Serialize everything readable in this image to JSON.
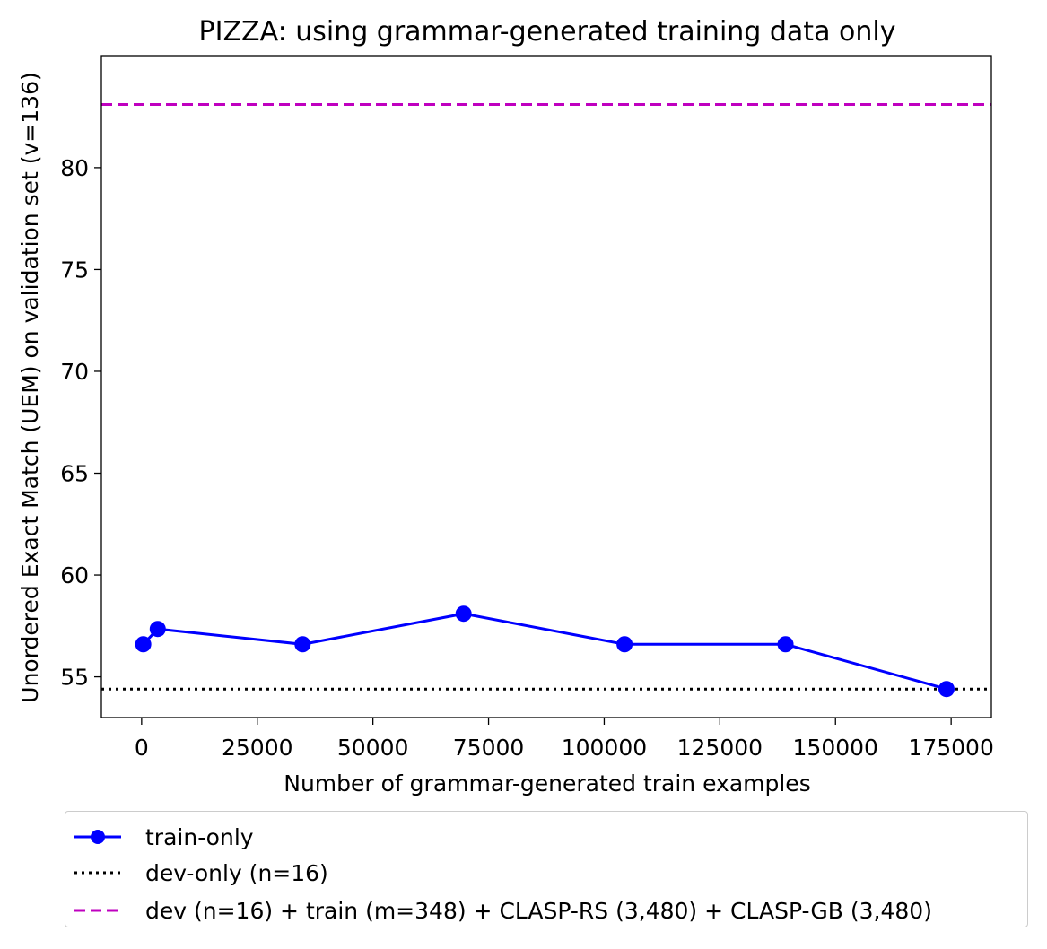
{
  "chart_data": {
    "type": "line",
    "title": "PIZZA: using grammar-generated training data only",
    "xlabel": "Number of grammar-generated train examples",
    "ylabel": "Unordered Exact Match (UEM) on validation set (v=136)",
    "xlim": [
      -8700,
      183700
    ],
    "ylim": [
      53.0,
      85.5
    ],
    "xticks": [
      0,
      25000,
      50000,
      75000,
      100000,
      125000,
      150000,
      175000
    ],
    "xtick_labels": [
      "0",
      "25000",
      "50000",
      "75000",
      "100000",
      "125000",
      "150000",
      "175000"
    ],
    "yticks": [
      55,
      60,
      65,
      70,
      75,
      80
    ],
    "ytick_labels": [
      "55",
      "60",
      "65",
      "70",
      "75",
      "80"
    ],
    "grid": false,
    "legend_position": "below",
    "series": [
      {
        "name": "train-only",
        "style": "solid-marker",
        "color": "#0000ff",
        "x": [
          348,
          3480,
          34800,
          69600,
          104400,
          139200,
          174000
        ],
        "y": [
          56.6,
          57.35,
          56.6,
          58.1,
          56.6,
          56.6,
          54.4
        ]
      },
      {
        "name": "dev-only (n=16)",
        "style": "dotted-hline",
        "color": "#000000",
        "y": 54.4
      },
      {
        "name": "dev (n=16) + train (m=348) + CLASP-RS (3,480) + CLASP-GB (3,480)",
        "style": "dashed-hline",
        "color": "#bf00bf",
        "y": 83.1
      }
    ]
  }
}
